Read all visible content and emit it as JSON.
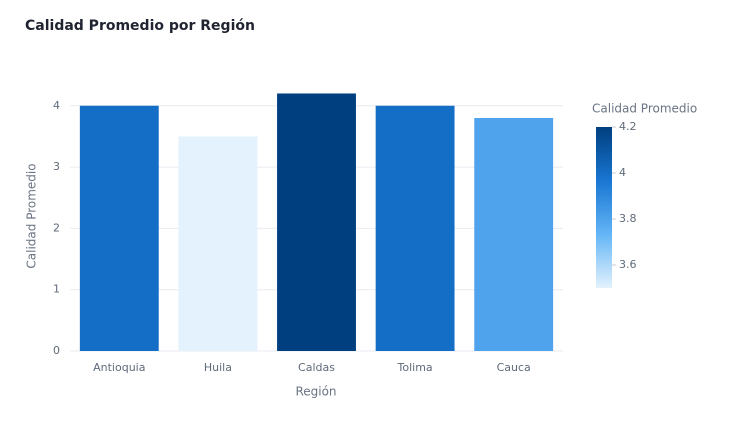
{
  "chart_data": {
    "type": "bar",
    "title": "Calidad Promedio por Región",
    "x_label": "Región",
    "y_label": "Calidad Promedio",
    "categories": [
      "Antioquia",
      "Huila",
      "Caldas",
      "Tolima",
      "Cauca"
    ],
    "values": [
      4.0,
      3.5,
      4.2,
      4.0,
      3.8
    ],
    "ylim": [
      0,
      4.42
    ],
    "yticks": [
      0,
      1,
      2,
      3,
      4
    ],
    "grid": true,
    "colorbar": {
      "title": "Calidad Promedio",
      "clim": [
        3.5,
        4.2
      ],
      "ticks": [
        3.6,
        3.8,
        4,
        4.2
      ],
      "colorscale": [
        "#e3f2fd",
        "#64b5f6",
        "#1976d2",
        "#003f7f"
      ]
    }
  }
}
